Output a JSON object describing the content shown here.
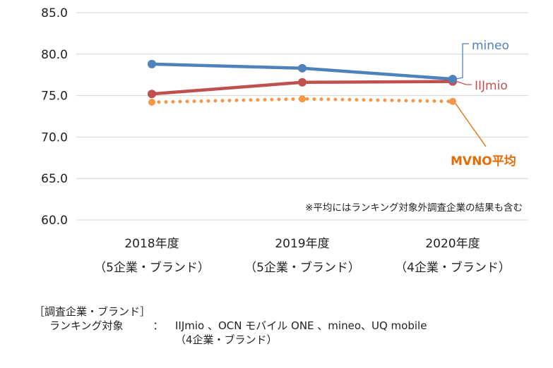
{
  "chart_data": {
    "type": "line",
    "categories": [
      [
        "2018年度",
        "（5企業・ブランド）"
      ],
      [
        "2019年度",
        "（5企業・ブランド）"
      ],
      [
        "2020年度",
        "（4企業・ブランド）"
      ]
    ],
    "yticks": [
      "85.0",
      "80.0",
      "75.0",
      "70.0",
      "65.0",
      "60.0"
    ],
    "ylim": [
      60,
      85
    ],
    "grid": true,
    "series": [
      {
        "name": "mineo",
        "values": [
          78.8,
          78.3,
          77.0
        ],
        "color": "#4f81bd",
        "style": "solid"
      },
      {
        "name": "IIJmio",
        "values": [
          75.2,
          76.6,
          76.7
        ],
        "color": "#c0504d",
        "style": "solid"
      },
      {
        "name": "MVNO平均",
        "values": [
          74.2,
          74.6,
          74.3
        ],
        "color": "#f79646",
        "style": "dotted"
      }
    ],
    "label_colors": {
      "mineo": "#4f81bd",
      "IIJmio": "#c0504d",
      "MVNO平均": "#e36c09"
    },
    "annotation": "※平均にはランキング対象外調査企業の結果も含む"
  },
  "footer": {
    "heading": "［調査企業・ブランド］",
    "label": "ランキング対象",
    "colon": "：",
    "value": "IIJmio 、OCN モバイル ONE 、mineo、UQ mobile",
    "value_sub": "（4企業・ブランド）"
  }
}
